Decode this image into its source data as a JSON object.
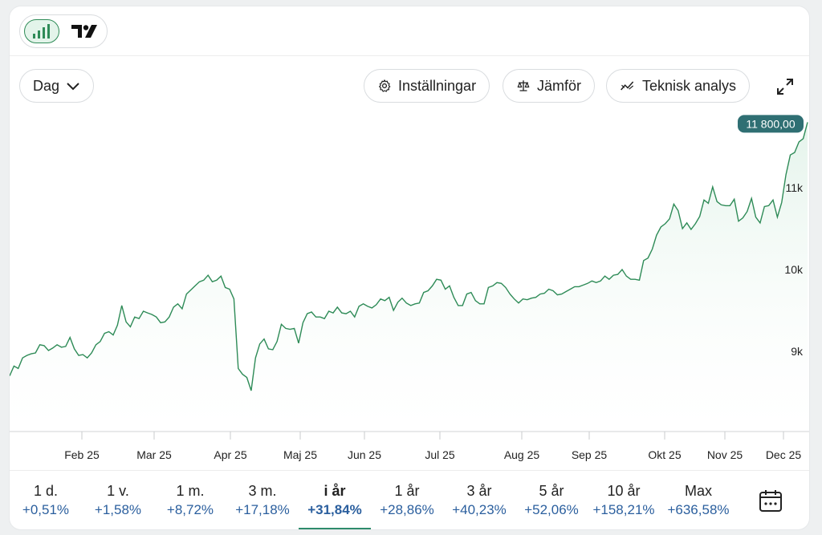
{
  "toolbar": {
    "view_toggle": {
      "chart_icon": "bar-chart-icon",
      "tradingview_icon": "tradingview-logo-icon"
    },
    "interval_label": "Dag",
    "settings_label": "Inställningar",
    "compare_label": "Jämför",
    "technical_label": "Teknisk analys"
  },
  "colors": {
    "line": "#2e8b57",
    "badge": "#2f6f73",
    "fill_top": "#e8f5ee",
    "change": "#2b5f9e"
  },
  "chart_data": {
    "type": "area",
    "title": "",
    "xlabel": "",
    "ylabel": "",
    "x_ticks": [
      "Feb 25",
      "Mar 25",
      "Apr 25",
      "Maj 25",
      "Jun 25",
      "Jul 25",
      "Aug 25",
      "Sep 25",
      "Okt 25",
      "Nov 25",
      "Dec 25"
    ],
    "y_ticks": [
      "9k",
      "10k",
      "11k"
    ],
    "y_tick_values": [
      9000,
      10000,
      11000
    ],
    "ylim": [
      8000,
      11800
    ],
    "last_value_label": "11 800,00",
    "series": [
      {
        "values": [
          8700,
          8820,
          8790,
          8920,
          8950,
          8970,
          8980,
          9080,
          9070,
          9010,
          9040,
          9080,
          9050,
          9060,
          9170,
          9030,
          8950,
          8960,
          8920,
          8980,
          9080,
          9120,
          9220,
          9240,
          9200,
          9320,
          9560,
          9360,
          9300,
          9420,
          9400,
          9490,
          9470,
          9450,
          9420,
          9350,
          9360,
          9420,
          9540,
          9580,
          9520,
          9700,
          9750,
          9800,
          9850,
          9870,
          9930,
          9850,
          9870,
          9920,
          9780,
          9760,
          9640,
          8790,
          8720,
          8680,
          8520,
          8920,
          9090,
          9150,
          9030,
          9020,
          9120,
          9330,
          9280,
          9270,
          9280,
          9100,
          9350,
          9460,
          9480,
          9420,
          9420,
          9400,
          9490,
          9470,
          9540,
          9470,
          9460,
          9490,
          9420,
          9550,
          9580,
          9550,
          9530,
          9570,
          9640,
          9620,
          9660,
          9500,
          9600,
          9650,
          9590,
          9560,
          9580,
          9590,
          9720,
          9740,
          9800,
          9880,
          9870,
          9760,
          9800,
          9660,
          9560,
          9560,
          9700,
          9720,
          9620,
          9580,
          9580,
          9780,
          9800,
          9840,
          9830,
          9780,
          9700,
          9640,
          9590,
          9640,
          9630,
          9650,
          9660,
          9700,
          9710,
          9760,
          9740,
          9690,
          9700,
          9730,
          9760,
          9790,
          9790,
          9810,
          9830,
          9860,
          9840,
          9860,
          9920,
          9880,
          9930,
          9940,
          10000,
          9920,
          9880,
          9880,
          9870,
          10110,
          10140,
          10250,
          10420,
          10520,
          10560,
          10620,
          10800,
          10720,
          10500,
          10570,
          10490,
          10560,
          10650,
          10850,
          10810,
          11010,
          10830,
          10790,
          10780,
          10780,
          10860,
          10590,
          10630,
          10710,
          10870,
          10640,
          10570,
          10770,
          10780,
          10850,
          10640,
          10820,
          11160,
          11400,
          11430,
          11560,
          11600,
          11800
        ]
      }
    ]
  },
  "periods": [
    {
      "label": "1 d.",
      "change": "+0,51%"
    },
    {
      "label": "1 v.",
      "change": "+1,58%"
    },
    {
      "label": "1 m.",
      "change": "+8,72%"
    },
    {
      "label": "3 m.",
      "change": "+17,18%"
    },
    {
      "label": "i år",
      "change": "+31,84%",
      "active": true
    },
    {
      "label": "1 år",
      "change": "+28,86%"
    },
    {
      "label": "3 år",
      "change": "+40,23%"
    },
    {
      "label": "5 år",
      "change": "+52,06%"
    },
    {
      "label": "10 år",
      "change": "+158,21%"
    },
    {
      "label": "Max",
      "change": "+636,58%"
    }
  ],
  "calendar_icon": "calendar-icon"
}
